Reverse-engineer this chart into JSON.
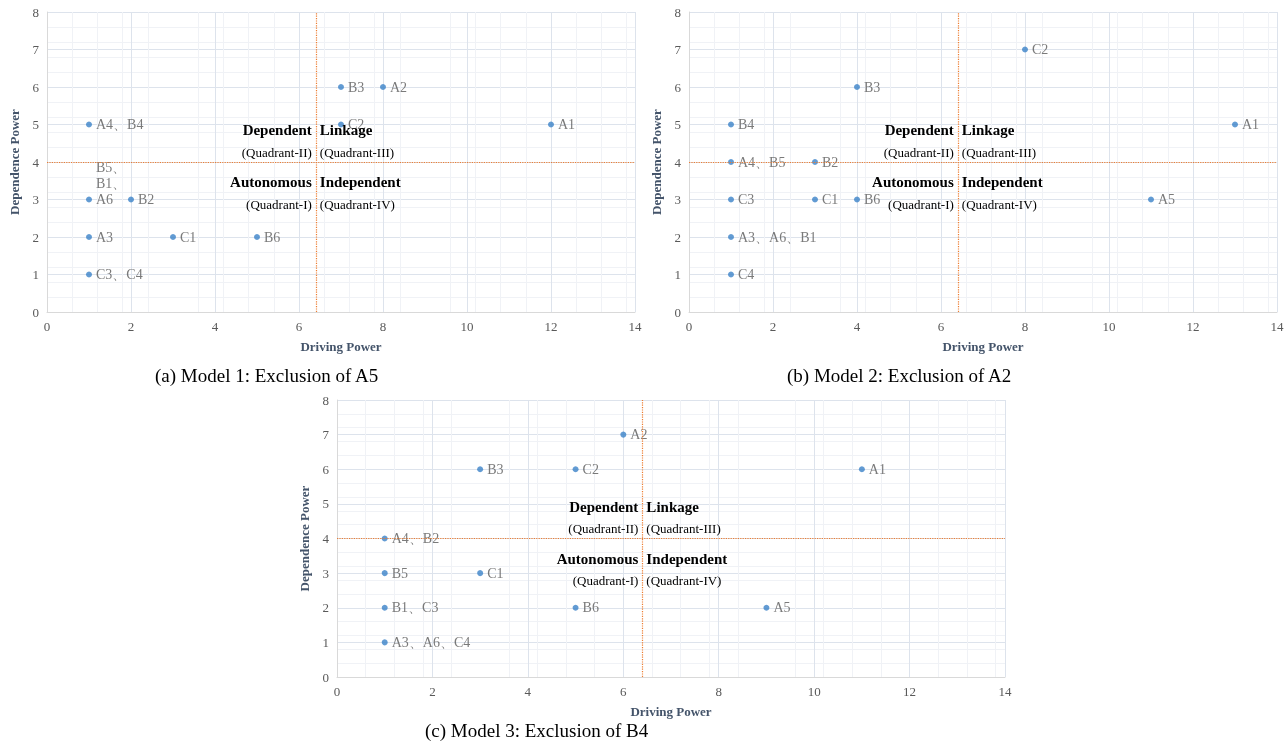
{
  "chart_data": [
    {
      "type": "scatter",
      "title": "(a) Model 1: Exclusion of A5",
      "xlabel": "Driving Power",
      "ylabel": "Dependence Power",
      "color": "#3b82c8",
      "marker": "circle",
      "grid": true,
      "x": [
        1,
        1,
        2,
        1,
        3,
        5,
        1,
        7,
        8,
        7,
        12
      ],
      "values": [
        5,
        3,
        3,
        2,
        2,
        2,
        1,
        6,
        6,
        5,
        5
      ],
      "value_labels": [
        "A4、B4",
        "B5、B1、A6",
        "B2",
        "A3",
        "C1",
        "B6",
        "C3、C4",
        "B3",
        "A2",
        "C2",
        "A1"
      ],
      "xlim": [
        0,
        14
      ],
      "xticks": [
        0,
        2,
        4,
        6,
        8,
        10,
        12,
        14
      ],
      "ylim": [
        0,
        8
      ],
      "yticks": [
        0,
        1,
        2,
        3,
        4,
        5,
        6,
        7,
        8
      ],
      "ref_lines": [
        {
          "axis": "x",
          "value": 6.4,
          "color": "#ed7d31",
          "line_style": "dotted"
        },
        {
          "axis": "y",
          "value": 4,
          "color": "#ed7d31",
          "line_style": "dotted"
        }
      ],
      "annotations": [
        "Dependent",
        "(Quadrant-II)",
        "Linkage",
        "(Quadrant-III)",
        "Autonomous",
        "(Quadrant-I)",
        "Independent",
        "(Quadrant-IV)"
      ]
    },
    {
      "type": "scatter",
      "title": "(b) Model 2: Exclusion of A2",
      "xlabel": "Driving Power",
      "ylabel": "Dependence Power",
      "color": "#3b82c8",
      "marker": "circle",
      "grid": true,
      "x": [
        8,
        4,
        1,
        13,
        1,
        3,
        1,
        3,
        4,
        11,
        1,
        1
      ],
      "values": [
        7,
        6,
        5,
        5,
        4,
        4,
        3,
        3,
        3,
        3,
        2,
        1
      ],
      "value_labels": [
        "C2",
        "B3",
        "B4",
        "A1",
        "A4、B5",
        "B2",
        "C3",
        "C1",
        "B6",
        "A5",
        "A3、A6、B1",
        "C4"
      ],
      "xlim": [
        0,
        14
      ],
      "xticks": [
        0,
        2,
        4,
        6,
        8,
        10,
        12,
        14
      ],
      "ylim": [
        0,
        8
      ],
      "yticks": [
        0,
        1,
        2,
        3,
        4,
        5,
        6,
        7,
        8
      ],
      "ref_lines": [
        {
          "axis": "x",
          "value": 6.4,
          "color": "#ed7d31",
          "line_style": "dotted"
        },
        {
          "axis": "y",
          "value": 4,
          "color": "#ed7d31",
          "line_style": "dotted"
        }
      ],
      "annotations": [
        "Dependent",
        "(Quadrant-II)",
        "Linkage",
        "(Quadrant-III)",
        "Autonomous",
        "(Quadrant-I)",
        "Independent",
        "(Quadrant-IV)"
      ]
    },
    {
      "type": "scatter",
      "title": "(c) Model 3: Exclusion of B4",
      "xlabel": "Driving Power",
      "ylabel": "Dependence Power",
      "color": "#3b82c8",
      "marker": "circle",
      "grid": true,
      "x": [
        6,
        3,
        5,
        11,
        1,
        1,
        3,
        1,
        5,
        9,
        1
      ],
      "values": [
        7,
        6,
        6,
        6,
        4,
        3,
        3,
        2,
        2,
        2,
        1
      ],
      "value_labels": [
        "A2",
        "B3",
        "C2",
        "A1",
        "A4、B2",
        "B5",
        "C1",
        "B1、C3",
        "B6",
        "A5",
        "A3、A6、C4"
      ],
      "xlim": [
        0,
        14
      ],
      "xticks": [
        0,
        2,
        4,
        6,
        8,
        10,
        12,
        14
      ],
      "ylim": [
        0,
        8
      ],
      "yticks": [
        0,
        1,
        2,
        3,
        4,
        5,
        6,
        7,
        8
      ],
      "ref_lines": [
        {
          "axis": "x",
          "value": 6.4,
          "color": "#ed7d31",
          "line_style": "dotted"
        },
        {
          "axis": "y",
          "value": 4,
          "color": "#ed7d31",
          "line_style": "dotted"
        }
      ],
      "annotations": [
        "Dependent",
        "(Quadrant-II)",
        "Linkage",
        "(Quadrant-III)",
        "Autonomous",
        "(Quadrant-I)",
        "Independent",
        "(Quadrant-IV)"
      ]
    }
  ]
}
